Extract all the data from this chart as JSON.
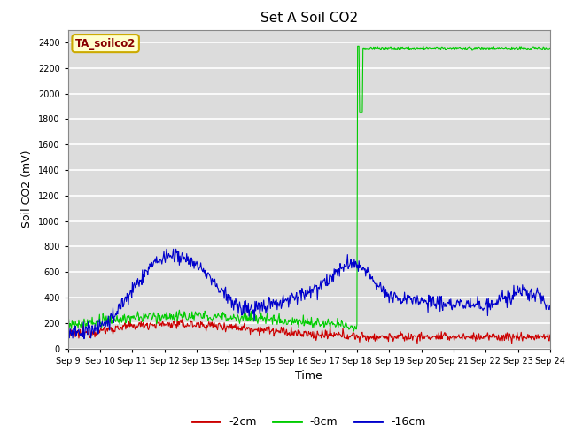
{
  "title": "Set A Soil CO2",
  "ylabel": "Soil CO2 (mV)",
  "xlabel": "Time",
  "ylim": [
    0,
    2500
  ],
  "bg_color": "#dcdcdc",
  "grid_color": "#ffffff",
  "series_colors": {
    "2cm": "#cc0000",
    "8cm": "#00cc00",
    "16cm": "#0000cc"
  },
  "legend_label": "TA_soilco2",
  "legend_bg": "#ffffcc",
  "legend_border": "#ccaa00",
  "xtick_labels": [
    "Sep 9",
    "Sep 10",
    "Sep 11",
    "Sep 12",
    "Sep 13",
    "Sep 14",
    "Sep 15",
    "Sep 16",
    "Sep 17",
    "Sep 18",
    "Sep 19",
    "Sep 20",
    "Sep 21",
    "Sep 22",
    "Sep 23",
    "Sep 24"
  ],
  "n_points": 720
}
